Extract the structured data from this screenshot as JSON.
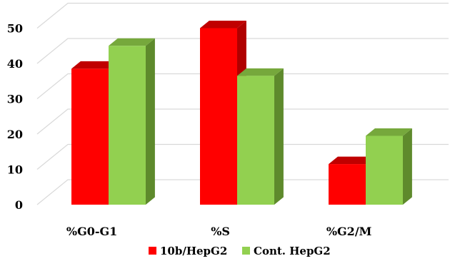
{
  "chart_data": {
    "type": "bar",
    "categories": [
      "%G0-G1",
      "%S",
      "%G2/M"
    ],
    "series": [
      {
        "name": "10b/HepG2",
        "values": [
          38.5,
          50.0,
          11.5
        ],
        "color": "#ff0000",
        "top_color": "#c00000",
        "side_color": "#b00000"
      },
      {
        "name": "Cont. HepG2",
        "values": [
          45.0,
          36.5,
          19.5
        ],
        "color": "#92d050",
        "top_color": "#76a83c",
        "side_color": "#5e8a2c"
      }
    ],
    "ylim": [
      0,
      50
    ],
    "yticks": [
      0,
      10,
      20,
      30,
      40,
      50
    ],
    "grid": true,
    "legend": "bottom",
    "three_d": true
  }
}
